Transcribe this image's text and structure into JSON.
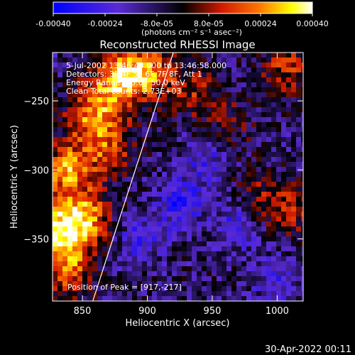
{
  "colorbar": {
    "tick_labels": [
      "-0.00040",
      "-0.00024",
      "-8.0e-05",
      "8.0e-05",
      "0.00024",
      "0.00040"
    ],
    "tick_values": [
      -0.0004,
      -0.00024,
      -8e-05,
      8e-05,
      0.00024,
      0.0004
    ],
    "range": [
      -0.0004,
      0.0004
    ],
    "unit_label": "(photons cm⁻² s⁻¹ asec⁻²)",
    "colors": [
      "#0000ff",
      "#5a2bd6",
      "#000000",
      "#d11a00",
      "#ff7a00",
      "#ffff00",
      "#ffffff"
    ]
  },
  "info_lines": [
    "5-Jul-2002 13:46:44.000 to 13:46:58.000",
    "Detectors: 3F 4F 5F 6F 7F 8F, Att 1",
    "Energy Range: 25.0 - 50.0 keV",
    "Clean     Total counts: 2.73E+03"
  ],
  "peak_text": "Position of Peak = [917,-217]",
  "timestamp": "30-Apr-2022 00:11",
  "chart_data": {
    "type": "heatmap",
    "title": "Reconstructed RHESSI Image",
    "xlabel": "Heliocentric X (arcsec)",
    "ylabel": "Heliocentric Y (arcsec)",
    "xlim": [
      827,
      1020
    ],
    "ylim": [
      -395,
      -215
    ],
    "x_ticks": [
      850,
      900,
      950,
      1000
    ],
    "x_tick_labels": [
      "850",
      "900",
      "950",
      "1000"
    ],
    "y_ticks": [
      -250,
      -300,
      -350
    ],
    "y_tick_labels": [
      "−250",
      "−300",
      "−350"
    ],
    "peak": [
      917,
      -217
    ],
    "limb_line": [
      [
        858,
        -395
      ],
      [
        920,
        -215
      ]
    ],
    "grid": false,
    "legend": "none",
    "hotspots": [
      {
        "x": 878,
        "y": -235,
        "amp": 0.00038
      },
      {
        "x": 858,
        "y": -260,
        "amp": 0.0003
      },
      {
        "x": 838,
        "y": -300,
        "amp": 0.00034
      },
      {
        "x": 832,
        "y": -345,
        "amp": 0.00038
      },
      {
        "x": 852,
        "y": -335,
        "amp": 0.00032
      },
      {
        "x": 838,
        "y": -372,
        "amp": 0.00026
      },
      {
        "x": 870,
        "y": -285,
        "amp": 0.00022
      },
      {
        "x": 900,
        "y": -228,
        "amp": 0.00028
      },
      {
        "x": 935,
        "y": -242,
        "amp": 0.00016
      },
      {
        "x": 1008,
        "y": -226,
        "amp": 0.0002
      },
      {
        "x": 1012,
        "y": -330,
        "amp": 0.00016
      },
      {
        "x": 985,
        "y": -320,
        "amp": 0.00014
      },
      {
        "x": 962,
        "y": -268,
        "amp": 0.00012
      }
    ],
    "coldspots": [
      {
        "x": 925,
        "y": -325,
        "amp": -0.00022
      },
      {
        "x": 945,
        "y": -295,
        "amp": -0.00016
      },
      {
        "x": 970,
        "y": -340,
        "amp": -0.00018
      },
      {
        "x": 895,
        "y": -350,
        "amp": -0.00016
      },
      {
        "x": 1000,
        "y": -380,
        "amp": -0.00014
      }
    ]
  }
}
